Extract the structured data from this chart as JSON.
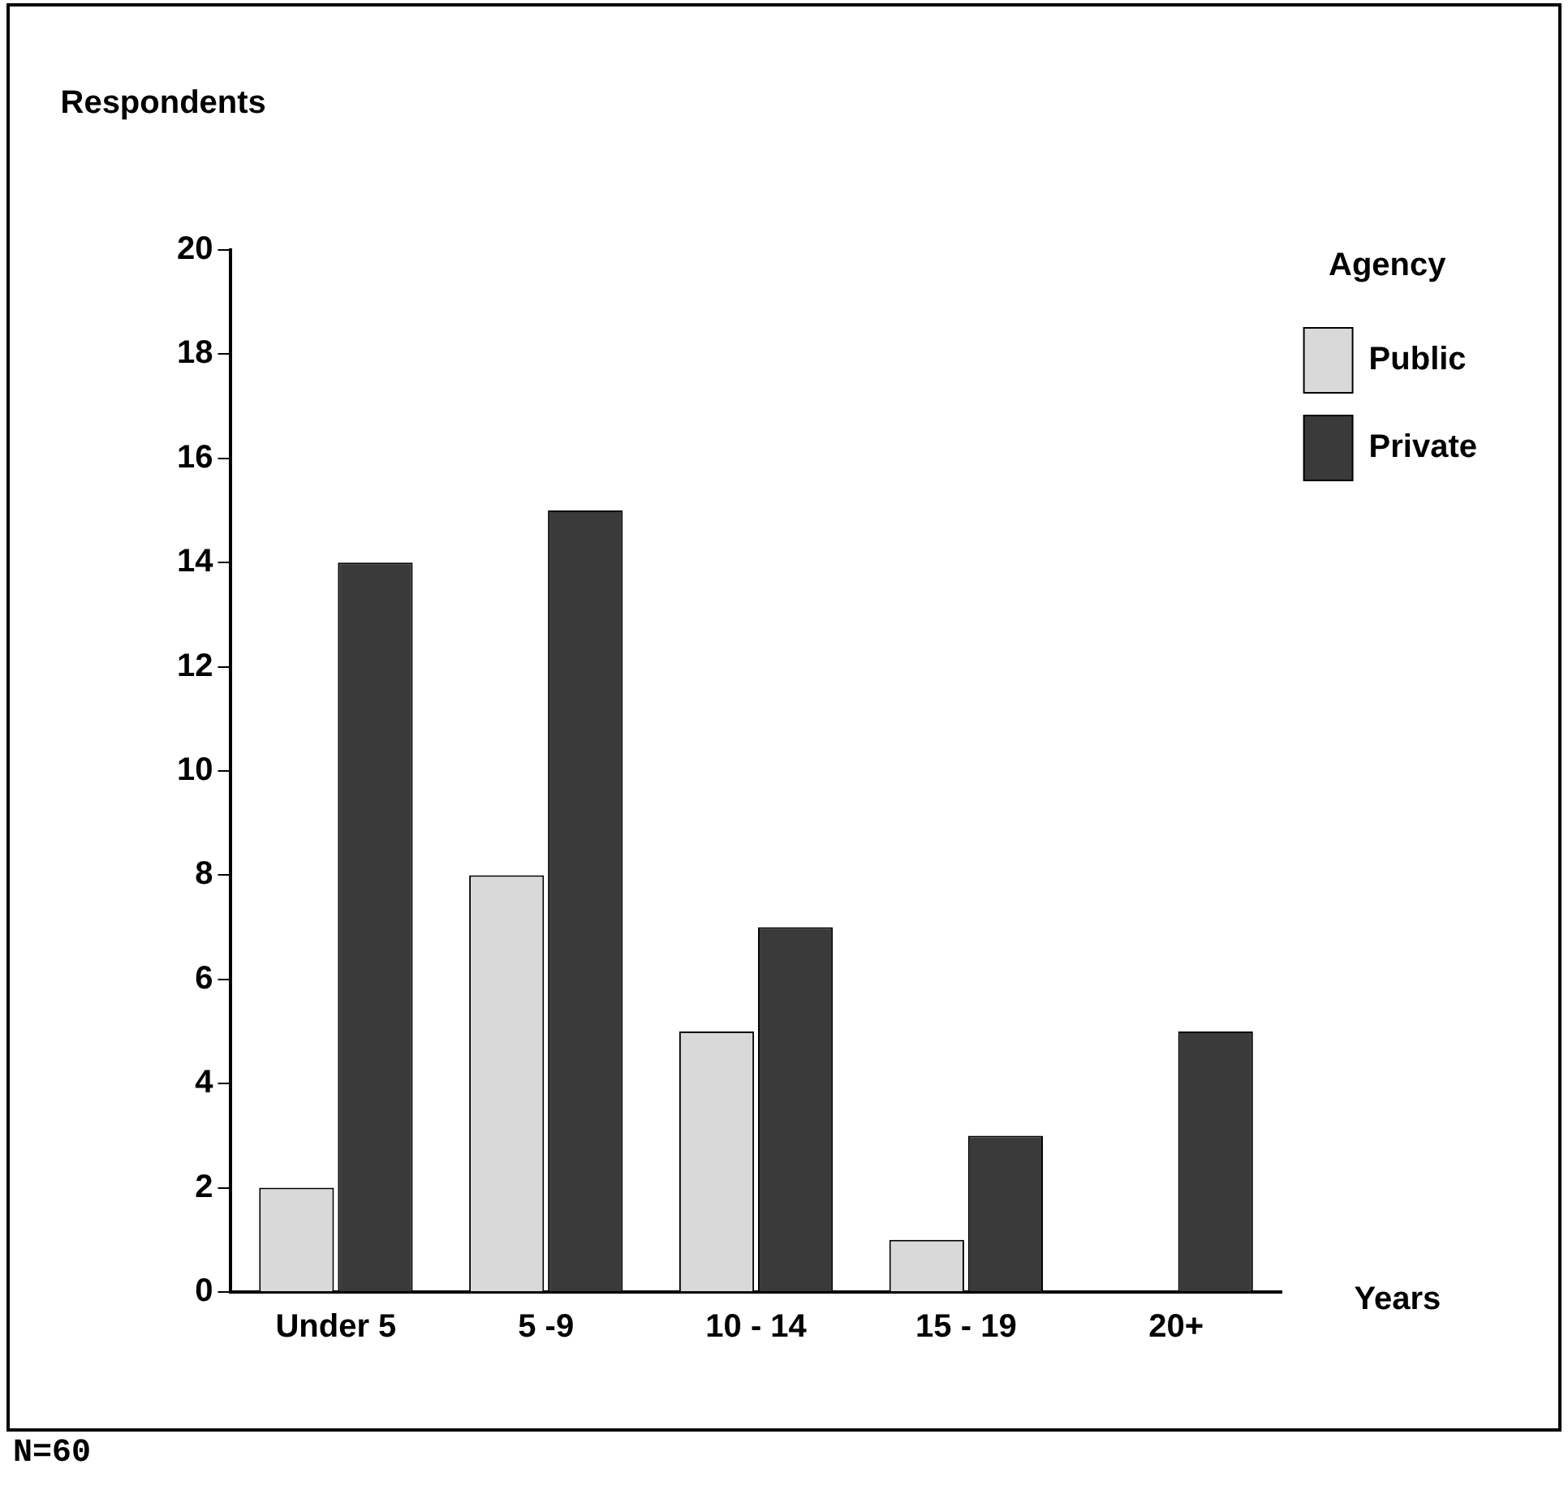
{
  "chart_data": {
    "type": "bar",
    "ylabel": "Respondents",
    "xlabel": "Years",
    "legend_title": "Agency",
    "categories": [
      "Under 5",
      "5 -9",
      "10 - 14",
      "15 - 19",
      "20+"
    ],
    "series": [
      {
        "name": "Public",
        "color": "#d9d9d9",
        "values": [
          2,
          8,
          5,
          1,
          0
        ]
      },
      {
        "name": "Private",
        "color": "#3a3a3a",
        "values": [
          14,
          15,
          7,
          3,
          5
        ]
      }
    ],
    "ylim": [
      0,
      20
    ],
    "yticks": [
      0,
      2,
      4,
      6,
      8,
      10,
      12,
      14,
      16,
      18,
      20
    ],
    "grid": false,
    "legend": "right",
    "annotations": [
      "N=60"
    ]
  }
}
